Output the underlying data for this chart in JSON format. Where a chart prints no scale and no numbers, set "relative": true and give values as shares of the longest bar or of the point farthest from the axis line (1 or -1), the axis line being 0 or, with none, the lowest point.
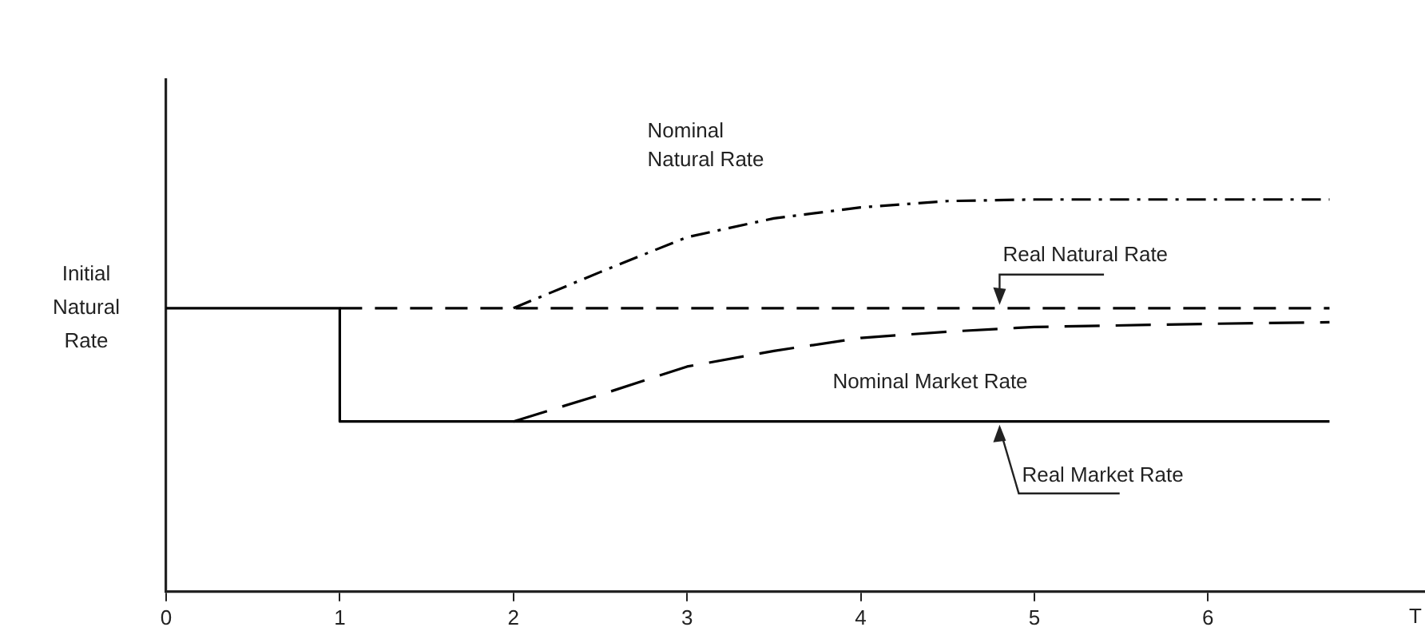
{
  "chart_data": {
    "type": "line",
    "relative": true,
    "xlabel": "T",
    "xlim": [
      0,
      7.25
    ],
    "xticks": [
      0,
      1,
      2,
      3,
      4,
      5,
      6
    ],
    "grid": false,
    "legend": false,
    "marker": "none",
    "annotations": [
      {
        "text": "Initial\nNatural\nRate",
        "x": 0,
        "y": 0.723
      }
    ],
    "series": [
      {
        "name": "Real Market Rate",
        "color": "#000000",
        "line_style": "solid",
        "x": [
          0,
          1,
          1,
          6.7
        ],
        "values": [
          0.723,
          0.723,
          0.434,
          0.434
        ]
      },
      {
        "name": "Real Natural Rate",
        "color": "#000000",
        "line_style": "dashed",
        "x": [
          1,
          6.7
        ],
        "values": [
          0.723,
          0.723
        ]
      },
      {
        "name": "Nominal Natural Rate",
        "color": "#000000",
        "line_style": "dashdot",
        "x": [
          2,
          2.5,
          3,
          3.5,
          4,
          4.5,
          5,
          6.7
        ],
        "values": [
          0.723,
          0.815,
          0.904,
          0.952,
          0.98,
          0.996,
          1,
          1
        ]
      },
      {
        "name": "Nominal Market Rate",
        "color": "#000000",
        "line_style": "longdash",
        "x": [
          2,
          2.5,
          3,
          3.5,
          4,
          4.5,
          5,
          6,
          6.7
        ],
        "values": [
          0.434,
          0.502,
          0.574,
          0.614,
          0.647,
          0.663,
          0.675,
          0.683,
          0.687
        ]
      }
    ]
  }
}
